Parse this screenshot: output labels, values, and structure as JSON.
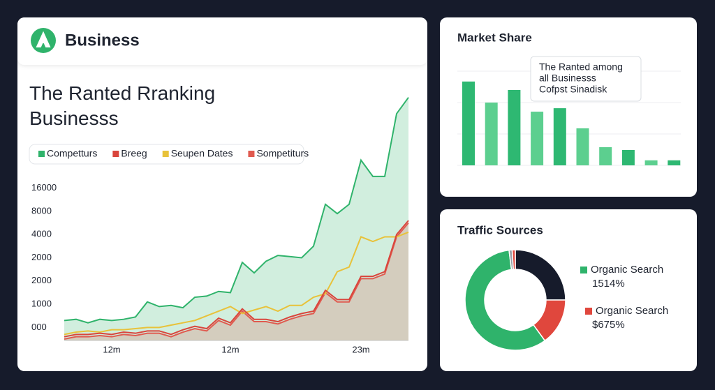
{
  "header": {
    "title": "Business"
  },
  "chart_data": [
    {
      "type": "line",
      "title": "The Ranted Rranking Businesss",
      "categories": [
        null,
        null,
        null,
        null,
        "12m",
        null,
        null,
        null,
        null,
        null,
        null,
        null,
        null,
        null,
        "12m",
        null,
        null,
        null,
        null,
        null,
        null,
        null,
        null,
        null,
        null,
        "23m",
        null,
        null,
        null,
        null
      ],
      "ylim": [
        -0.56,
        10.1
      ],
      "yticks": [
        {
          "value": 0,
          "label": "000"
        },
        {
          "value": 1,
          "label": "1000"
        },
        {
          "value": 2,
          "label": "2000"
        },
        {
          "value": 3,
          "label": "2000"
        },
        {
          "value": 4,
          "label": "4000"
        },
        {
          "value": 5,
          "label": "8000"
        },
        {
          "value": 6,
          "label": "16000"
        }
      ],
      "grid": false,
      "series": [
        {
          "name": "Competturs",
          "color": "#2fb36b",
          "fill": true,
          "values": [
            0.3,
            0.35,
            0.2,
            0.35,
            0.3,
            0.35,
            0.45,
            1.1,
            0.9,
            0.95,
            0.85,
            1.3,
            1.35,
            1.55,
            1.5,
            2.8,
            2.35,
            2.85,
            3.1,
            3.05,
            3.0,
            3.5,
            5.3,
            4.9,
            5.3,
            7.2,
            6.5,
            6.5,
            9.2,
            9.9
          ]
        },
        {
          "name": "Breeg",
          "color": "#d9453c",
          "fill": false,
          "values": [
            -0.4,
            -0.3,
            -0.3,
            -0.25,
            -0.3,
            -0.2,
            -0.25,
            -0.15,
            -0.15,
            -0.3,
            -0.1,
            0.05,
            -0.05,
            0.4,
            0.2,
            0.8,
            0.35,
            0.35,
            0.25,
            0.45,
            0.6,
            0.7,
            1.6,
            1.2,
            1.2,
            2.2,
            2.2,
            2.4,
            4.0,
            4.6
          ]
        },
        {
          "name": "Seupen Dates",
          "color": "#e8c23a",
          "fill": false,
          "values": [
            -0.3,
            -0.2,
            -0.15,
            -0.2,
            -0.1,
            -0.1,
            -0.05,
            0,
            0,
            0.1,
            0.2,
            0.3,
            0.5,
            0.7,
            0.9,
            0.6,
            0.75,
            0.9,
            0.7,
            0.95,
            0.95,
            1.3,
            1.45,
            2.4,
            2.6,
            3.9,
            3.7,
            3.9,
            3.9,
            4.1
          ]
        },
        {
          "name": "Sompetiturs",
          "color": "#e05a4f",
          "fill": true,
          "values": [
            -0.5,
            -0.4,
            -0.4,
            -0.35,
            -0.4,
            -0.3,
            -0.35,
            -0.25,
            -0.25,
            -0.4,
            -0.2,
            -0.05,
            -0.15,
            0.3,
            0.1,
            0.7,
            0.25,
            0.25,
            0.15,
            0.35,
            0.5,
            0.6,
            1.5,
            1.1,
            1.1,
            2.1,
            2.1,
            2.3,
            3.9,
            4.5
          ]
        }
      ]
    },
    {
      "type": "bar",
      "title": "Market Share",
      "values": [
        2.67,
        2.0,
        2.4,
        1.71,
        1.82,
        1.18,
        0.58,
        0.49,
        0.16,
        0.16
      ],
      "colors": [
        "#2eb872",
        "#5ccf8f",
        "#2eb872",
        "#5ccf8f",
        "#2eb872",
        "#5ccf8f",
        "#5ccf8f",
        "#2eb872",
        "#5ccf8f",
        "#2eb872"
      ],
      "ylim": [
        0,
        3
      ],
      "yticks": [
        0,
        1,
        2,
        3
      ],
      "grid": true,
      "tick_labels": false,
      "annotation": [
        "The Ranted among",
        "all Businesss",
        "Cofpst Sinadisk"
      ]
    },
    {
      "type": "donut",
      "title": "Traffic Sources",
      "values": [
        25,
        15,
        58,
        1,
        1
      ],
      "colors": [
        "#161b2b",
        "#e0473d",
        "#2fb36b",
        "#9aa0a8",
        "#e0473d"
      ],
      "legend": [
        {
          "name": "Organic Search",
          "text": "1514%",
          "color": "#2fb36b"
        },
        {
          "name": "Organic Search",
          "text": "$675%",
          "color": "#e0473d"
        }
      ]
    }
  ]
}
